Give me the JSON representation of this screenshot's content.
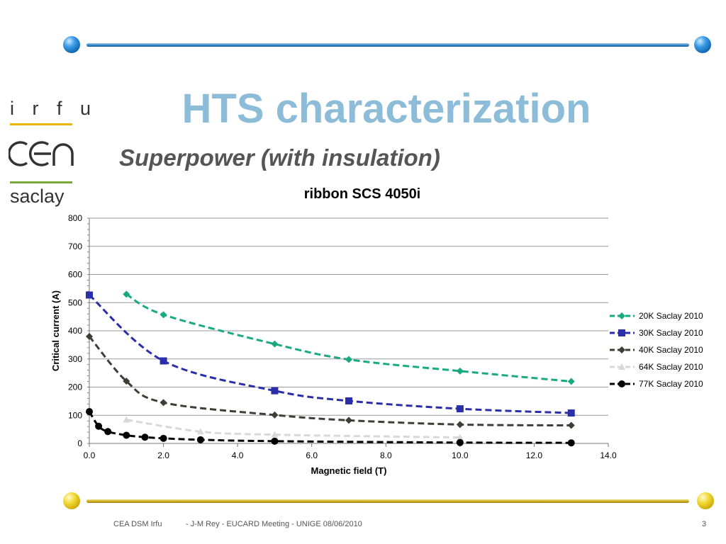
{
  "slide": {
    "title": "HTS characterization",
    "subtitle": "Superpower (with insulation)",
    "logo": {
      "irfu": "i r f u",
      "cea": "cea",
      "saclay": "saclay"
    },
    "footer": {
      "left": "CEA DSM Irfu",
      "middle": "- J-M Rey - EUCARD Meeting  - UNIGE 08/06/2010",
      "page": "3"
    }
  },
  "chart_data": {
    "type": "line",
    "title": "ribbon SCS 4050i",
    "xlabel": "Magnetic field (T)",
    "ylabel": "Critical current (A)",
    "xlim": [
      0,
      14
    ],
    "ylim": [
      0,
      800
    ],
    "xticks": [
      "0.0",
      "2.0",
      "4.0",
      "6.0",
      "8.0",
      "10.0",
      "12.0",
      "14.0"
    ],
    "yticks": [
      "0",
      "100",
      "200",
      "300",
      "400",
      "500",
      "600",
      "700",
      "800"
    ],
    "grid": "horizontal",
    "legend": "right",
    "series": [
      {
        "name": "20K Saclay 2010",
        "color": "#1aaa80",
        "marker": "diamond",
        "x": [
          1,
          2,
          5,
          7,
          10,
          13
        ],
        "y": [
          530,
          457,
          353,
          298,
          257,
          220
        ]
      },
      {
        "name": "30K Saclay 2010",
        "color": "#2a2ea8",
        "marker": "square",
        "x": [
          0,
          2,
          5,
          7,
          10,
          13
        ],
        "y": [
          527,
          293,
          187,
          151,
          123,
          108
        ]
      },
      {
        "name": "40K Saclay 2010",
        "color": "#3e3e34",
        "marker": "diamond",
        "x": [
          0,
          1,
          2,
          5,
          7,
          10,
          13
        ],
        "y": [
          380,
          221,
          145,
          101,
          82,
          67,
          64
        ]
      },
      {
        "name": "64K Saclay 2010",
        "color": "#d8d8d8",
        "marker": "triangle",
        "x": [
          1,
          3,
          5,
          10
        ],
        "y": [
          84,
          42,
          31,
          21
        ]
      },
      {
        "name": "77K Saclay 2010",
        "color": "#000000",
        "marker": "circle",
        "x": [
          0,
          0.25,
          0.5,
          1,
          1.5,
          2,
          3,
          5,
          10,
          13
        ],
        "y": [
          113,
          61,
          42,
          29,
          22,
          18,
          13,
          8,
          3,
          2
        ]
      }
    ]
  }
}
